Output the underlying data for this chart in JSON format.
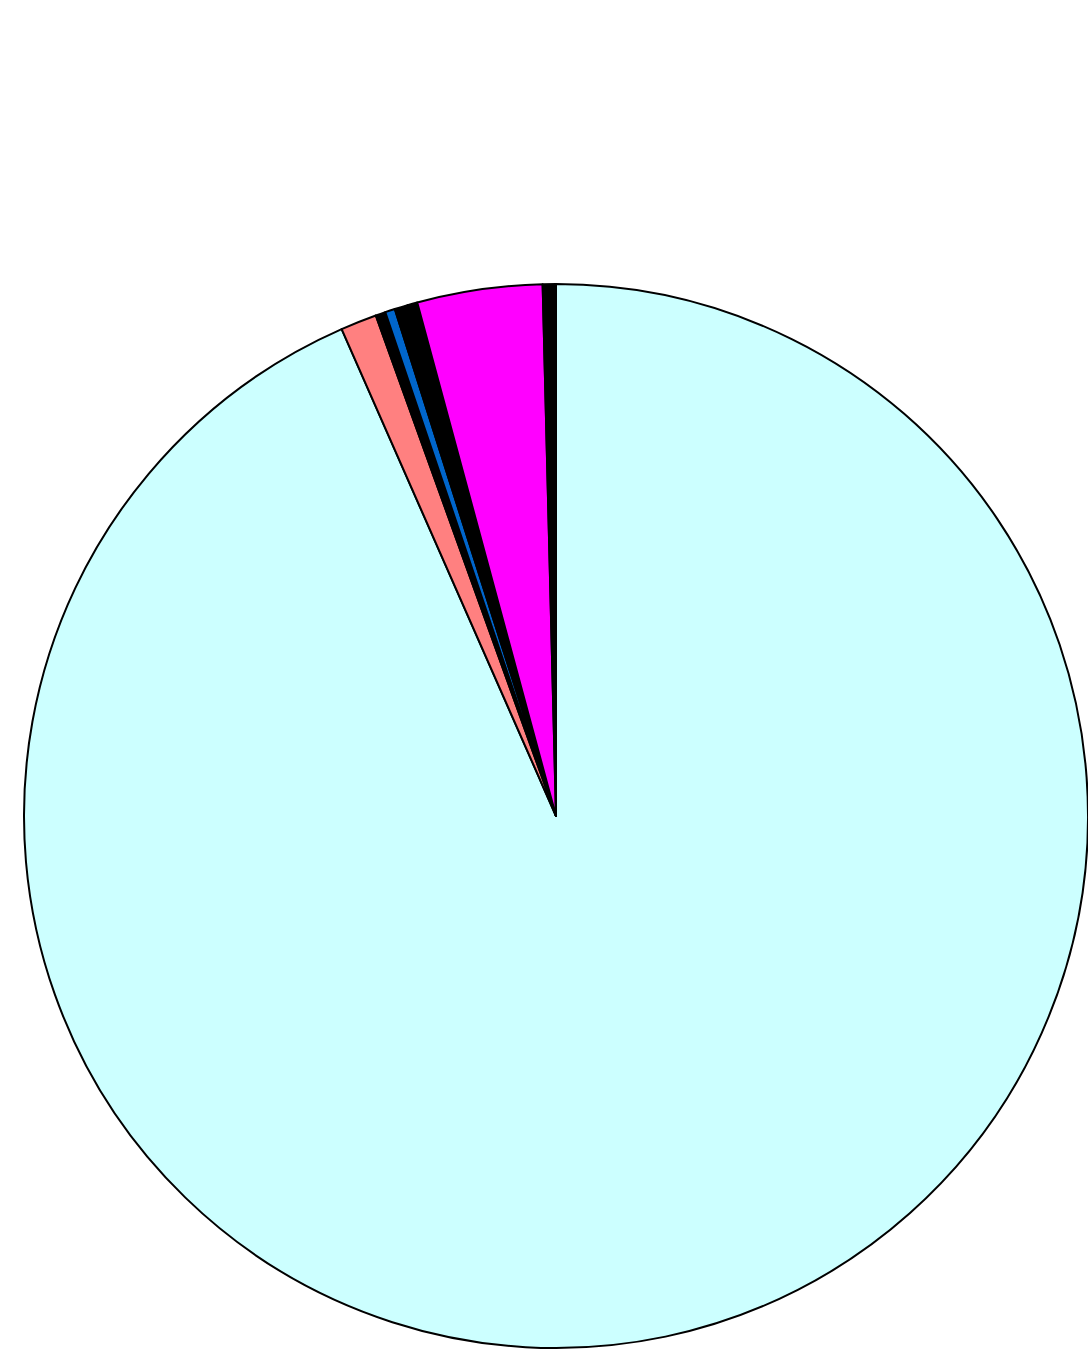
{
  "chart_data": {
    "type": "pie",
    "categories": [
      null,
      null,
      null,
      null,
      null,
      null,
      null,
      null
    ],
    "values": [
      93.4,
      1.1,
      0.3,
      0.3,
      0.4,
      0.3,
      3.8,
      0.4
    ],
    "colors": [
      "#ccffff",
      "#ff8080",
      "#000000",
      "#0066cc",
      "#000000",
      "#000000",
      "#ff00ff",
      "#000000"
    ]
  }
}
